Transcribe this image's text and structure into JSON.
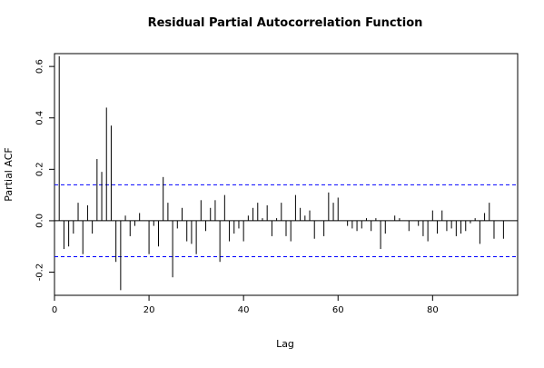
{
  "chart_data": {
    "type": "bar",
    "title": "Residual Partial Autocorrelation Function",
    "xlabel": "Lag",
    "ylabel": "Partial ACF",
    "xlim": [
      0,
      98
    ],
    "ylim": [
      -0.29,
      0.65
    ],
    "x_ticks": [
      0,
      20,
      40,
      60,
      80
    ],
    "y_ticks": [
      -0.2,
      0.0,
      0.2,
      0.4,
      0.6
    ],
    "x_tick_labels": [
      "0",
      "20",
      "40",
      "60",
      "80"
    ],
    "y_tick_labels": [
      "-0.2",
      "0.0",
      "0.2",
      "0.4",
      "0.6"
    ],
    "confidence_bound": 0.14,
    "grid": false,
    "colors": {
      "bars": "#000000",
      "bounds": "#0000ff",
      "zero_line": "#000000"
    },
    "lags": [
      1,
      2,
      3,
      4,
      5,
      6,
      7,
      8,
      9,
      10,
      11,
      12,
      13,
      14,
      15,
      16,
      17,
      18,
      19,
      20,
      21,
      22,
      23,
      24,
      25,
      26,
      27,
      28,
      29,
      30,
      31,
      32,
      33,
      34,
      35,
      36,
      37,
      38,
      39,
      40,
      41,
      42,
      43,
      44,
      45,
      46,
      47,
      48,
      49,
      50,
      51,
      52,
      53,
      54,
      55,
      56,
      57,
      58,
      59,
      60,
      61,
      62,
      63,
      64,
      65,
      66,
      67,
      68,
      69,
      70,
      71,
      72,
      73,
      74,
      75,
      76,
      77,
      78,
      79,
      80,
      81,
      82,
      83,
      84,
      85,
      86,
      87,
      88,
      89,
      90,
      91,
      92,
      93,
      94,
      95
    ],
    "values": [
      0.64,
      -0.11,
      -0.1,
      -0.05,
      0.07,
      -0.13,
      0.06,
      -0.05,
      0.24,
      0.19,
      0.44,
      0.37,
      -0.16,
      -0.27,
      0.02,
      -0.06,
      -0.02,
      0.03,
      0.0,
      -0.13,
      -0.02,
      -0.1,
      0.17,
      0.07,
      -0.22,
      -0.03,
      0.05,
      -0.08,
      -0.09,
      -0.13,
      0.08,
      -0.04,
      0.05,
      0.08,
      -0.16,
      0.1,
      -0.08,
      -0.05,
      -0.03,
      -0.08,
      0.02,
      0.05,
      0.07,
      0.01,
      0.06,
      -0.06,
      0.01,
      0.07,
      -0.06,
      -0.08,
      0.1,
      0.05,
      0.02,
      0.04,
      -0.07,
      0.0,
      -0.06,
      0.11,
      0.07,
      0.09,
      0.0,
      -0.02,
      -0.03,
      -0.04,
      -0.03,
      0.01,
      -0.04,
      0.01,
      -0.11,
      -0.05,
      0.0,
      0.02,
      0.01,
      0.0,
      -0.04,
      0.0,
      -0.02,
      -0.06,
      -0.08,
      0.04,
      -0.05,
      0.04,
      -0.04,
      -0.03,
      -0.06,
      -0.05,
      -0.04,
      -0.01,
      0.01,
      -0.09,
      0.03,
      0.07,
      -0.07,
      0.0,
      -0.07
    ]
  }
}
